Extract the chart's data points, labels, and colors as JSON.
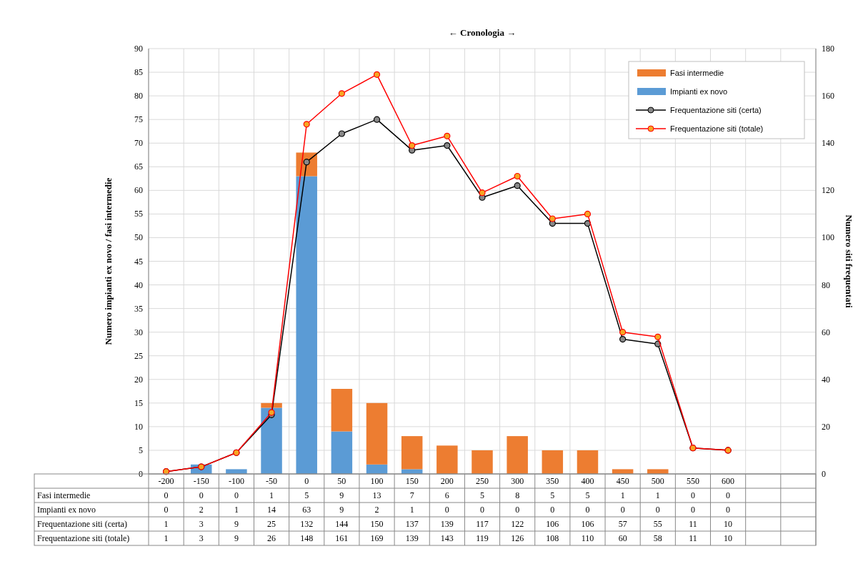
{
  "chart_data": {
    "type": "bar",
    "title": "← Cronologia →",
    "ylabel": "Numero impianti ex novo / fasi intermedie",
    "y2label": "Numero siti frequentati",
    "categories": [
      "-200",
      "-150",
      "-100",
      "-50",
      "0",
      "50",
      "100",
      "150",
      "200",
      "250",
      "300",
      "350",
      "400",
      "450",
      "500",
      "550",
      "600",
      null,
      null
    ],
    "series": [
      {
        "name": "Impianti ex novo",
        "color": "#5b9bd5",
        "values": [
          0,
          2,
          1,
          14,
          63,
          9,
          2,
          1,
          0,
          0,
          0,
          0,
          0,
          0,
          0,
          0,
          0,
          null,
          null
        ]
      },
      {
        "name": "Fasi intermedie",
        "color": "#ed7d31",
        "values": [
          0,
          0,
          0,
          1,
          5,
          9,
          13,
          7,
          6,
          5,
          8,
          5,
          5,
          1,
          1,
          0,
          0,
          null,
          null
        ]
      },
      {
        "name": "Frequentazione siti (certa)",
        "type": "line",
        "axis": "y2",
        "color": "#000000",
        "values": [
          1,
          3,
          9,
          25,
          132,
          144,
          150,
          137,
          139,
          117,
          122,
          106,
          106,
          57,
          55,
          11,
          10,
          null,
          null
        ]
      },
      {
        "name": "Frequentazione siti (totale)",
        "type": "line",
        "axis": "y2",
        "color": "#ff0000",
        "values": [
          1,
          3,
          9,
          26,
          148,
          161,
          169,
          139,
          143,
          119,
          126,
          108,
          110,
          60,
          58,
          11,
          10,
          null,
          null
        ]
      }
    ],
    "stacked": true,
    "ylim": [
      0,
      90
    ],
    "yticks": [
      0,
      5,
      10,
      15,
      20,
      25,
      30,
      35,
      40,
      45,
      50,
      55,
      60,
      65,
      70,
      75,
      80,
      85,
      90
    ],
    "y2lim": [
      0,
      180
    ],
    "y2ticks": [
      0,
      20,
      40,
      60,
      80,
      100,
      120,
      140,
      160,
      180
    ],
    "grid": true,
    "legend": "top right",
    "marker": "circle",
    "data_labels": true
  }
}
